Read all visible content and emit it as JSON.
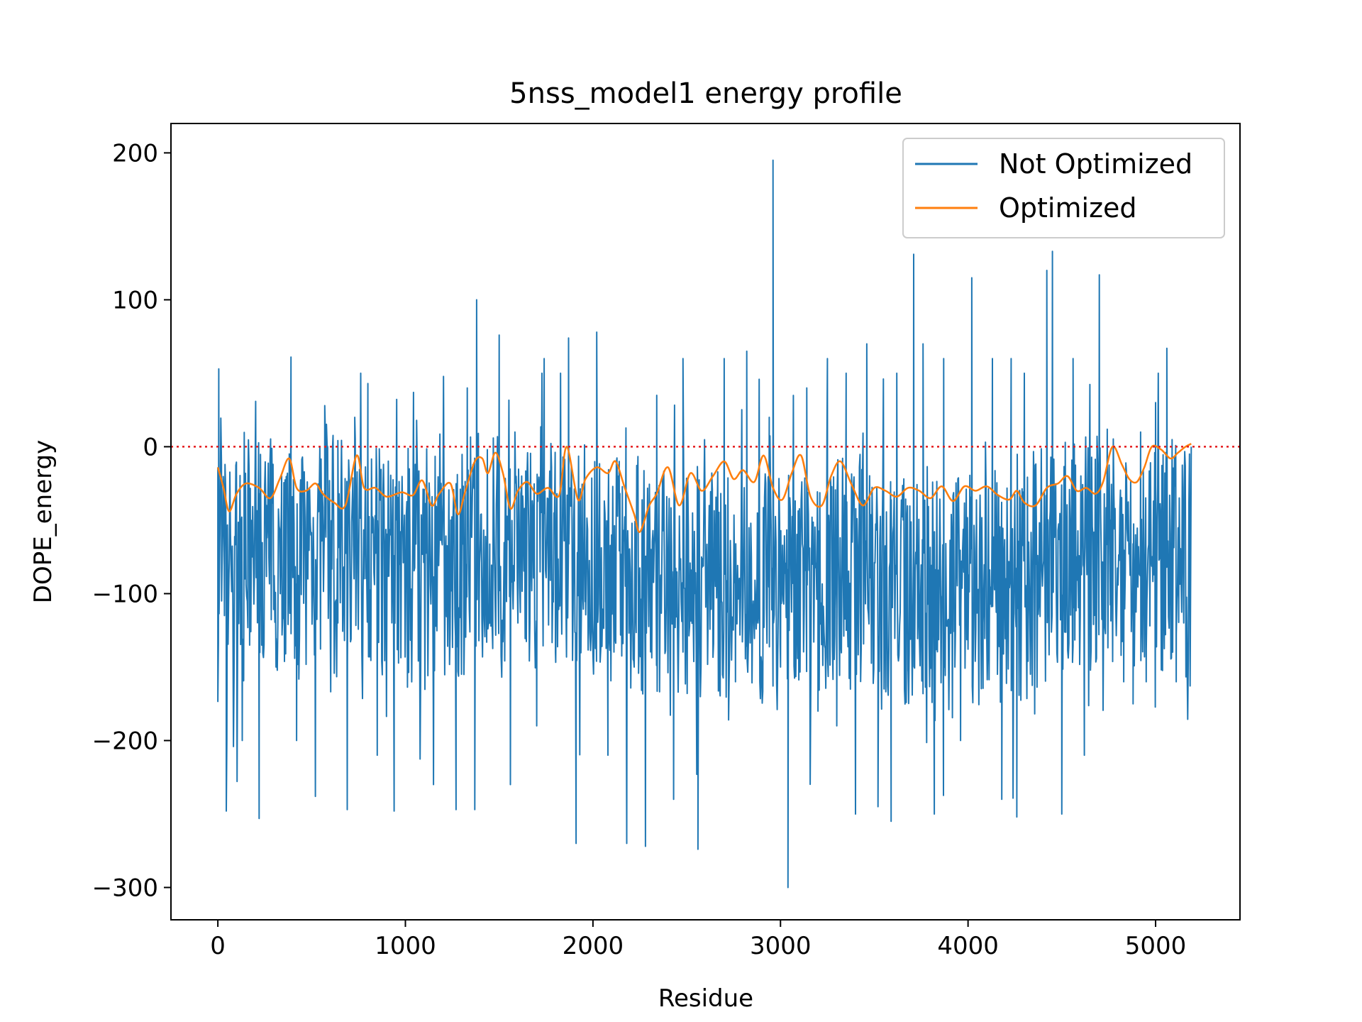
{
  "chart_data": {
    "type": "line",
    "title": "5nss_model1 energy profile",
    "xlabel": "Residue",
    "ylabel": "DOPE_energy",
    "xlim": [
      -250,
      5450
    ],
    "ylim": [
      -322,
      220
    ],
    "xticks": [
      0,
      1000,
      2000,
      3000,
      4000,
      5000
    ],
    "yticks": [
      200,
      100,
      0,
      -100,
      -200,
      -300
    ],
    "ytick_labels": [
      "200",
      "100",
      "0",
      "−100",
      "−200",
      "−300"
    ],
    "grid": false,
    "legend_position": "top-right",
    "reference_line": {
      "y": 0,
      "style": "dotted",
      "color": "#e41a1c"
    },
    "series": [
      {
        "name": "Not Optimized",
        "color": "#1f77b4",
        "x_start": 0,
        "x_end": 5190,
        "sampled_points": [
          [
            0,
            -14
          ],
          [
            5,
            53
          ],
          [
            20,
            -105
          ],
          [
            45,
            -248
          ],
          [
            100,
            -60
          ],
          [
            130,
            -200
          ],
          [
            160,
            -30
          ],
          [
            220,
            -253
          ],
          [
            260,
            -40
          ],
          [
            310,
            -150
          ],
          [
            340,
            -20
          ],
          [
            390,
            61
          ],
          [
            420,
            -200
          ],
          [
            480,
            -90
          ],
          [
            520,
            -238
          ],
          [
            570,
            28
          ],
          [
            640,
            -120
          ],
          [
            690,
            -247
          ],
          [
            730,
            20
          ],
          [
            800,
            43
          ],
          [
            850,
            -210
          ],
          [
            920,
            -60
          ],
          [
            940,
            -248
          ],
          [
            1010,
            -100
          ],
          [
            1060,
            18
          ],
          [
            1100,
            -70
          ],
          [
            1150,
            -230
          ],
          [
            1200,
            -40
          ],
          [
            1270,
            -247
          ],
          [
            1300,
            -90
          ],
          [
            1330,
            40
          ],
          [
            1370,
            -247
          ],
          [
            1380,
            100
          ],
          [
            1450,
            -120
          ],
          [
            1500,
            76
          ],
          [
            1560,
            -230
          ],
          [
            1620,
            -20
          ],
          [
            1700,
            -190
          ],
          [
            1740,
            60
          ],
          [
            1800,
            -140
          ],
          [
            1870,
            74
          ],
          [
            1910,
            -270
          ],
          [
            1960,
            -90
          ],
          [
            2020,
            78
          ],
          [
            2080,
            -210
          ],
          [
            2140,
            -10
          ],
          [
            2180,
            -270
          ],
          [
            2220,
            -150
          ],
          [
            2280,
            -272
          ],
          [
            2310,
            -70
          ],
          [
            2340,
            35
          ],
          [
            2430,
            -240
          ],
          [
            2480,
            60
          ],
          [
            2560,
            -274
          ],
          [
            2620,
            -40
          ],
          [
            2700,
            60
          ],
          [
            2760,
            -160
          ],
          [
            2820,
            65
          ],
          [
            2880,
            -120
          ],
          [
            2940,
            20
          ],
          [
            2960,
            195
          ],
          [
            3000,
            -150
          ],
          [
            3040,
            -300
          ],
          [
            3080,
            -120
          ],
          [
            3140,
            40
          ],
          [
            3200,
            -180
          ],
          [
            3250,
            60
          ],
          [
            3300,
            -190
          ],
          [
            3350,
            50
          ],
          [
            3400,
            -250
          ],
          [
            3460,
            70
          ],
          [
            3520,
            -245
          ],
          [
            3590,
            -255
          ],
          [
            3620,
            50
          ],
          [
            3680,
            -150
          ],
          [
            3710,
            131
          ],
          [
            3760,
            70
          ],
          [
            3820,
            -250
          ],
          [
            3870,
            60
          ],
          [
            3930,
            -150
          ],
          [
            3960,
            -200
          ],
          [
            4020,
            115
          ],
          [
            4080,
            -120
          ],
          [
            4130,
            60
          ],
          [
            4180,
            -240
          ],
          [
            4230,
            60
          ],
          [
            4260,
            -252
          ],
          [
            4300,
            50
          ],
          [
            4360,
            -80
          ],
          [
            4420,
            120
          ],
          [
            4450,
            133
          ],
          [
            4500,
            -250
          ],
          [
            4560,
            60
          ],
          [
            4620,
            -210
          ],
          [
            4700,
            117
          ],
          [
            4760,
            -50
          ],
          [
            4830,
            -160
          ],
          [
            4880,
            -175
          ],
          [
            4920,
            10
          ],
          [
            4950,
            -160
          ],
          [
            5000,
            30
          ],
          [
            5060,
            67
          ],
          [
            5110,
            -160
          ],
          [
            5150,
            -120
          ],
          [
            5190,
            0
          ]
        ]
      },
      {
        "name": "Optimized",
        "color": "#ff7f0e",
        "points": [
          [
            0,
            -14
          ],
          [
            30,
            -28
          ],
          [
            60,
            -44
          ],
          [
            100,
            -32
          ],
          [
            150,
            -25
          ],
          [
            220,
            -28
          ],
          [
            280,
            -35
          ],
          [
            330,
            -22
          ],
          [
            380,
            -8
          ],
          [
            420,
            -28
          ],
          [
            470,
            -30
          ],
          [
            520,
            -25
          ],
          [
            560,
            -32
          ],
          [
            620,
            -38
          ],
          [
            680,
            -40
          ],
          [
            740,
            -6
          ],
          [
            780,
            -28
          ],
          [
            840,
            -28
          ],
          [
            900,
            -34
          ],
          [
            980,
            -31
          ],
          [
            1040,
            -33
          ],
          [
            1090,
            -23
          ],
          [
            1140,
            -40
          ],
          [
            1180,
            -32
          ],
          [
            1240,
            -25
          ],
          [
            1280,
            -46
          ],
          [
            1320,
            -30
          ],
          [
            1370,
            -10
          ],
          [
            1410,
            -8
          ],
          [
            1440,
            -18
          ],
          [
            1480,
            -4
          ],
          [
            1520,
            -18
          ],
          [
            1560,
            -42
          ],
          [
            1600,
            -30
          ],
          [
            1650,
            -24
          ],
          [
            1700,
            -32
          ],
          [
            1760,
            -28
          ],
          [
            1820,
            -33
          ],
          [
            1860,
            0
          ],
          [
            1920,
            -36
          ],
          [
            1960,
            -22
          ],
          [
            2020,
            -14
          ],
          [
            2080,
            -18
          ],
          [
            2120,
            -10
          ],
          [
            2170,
            -28
          ],
          [
            2220,
            -46
          ],
          [
            2250,
            -58
          ],
          [
            2300,
            -40
          ],
          [
            2340,
            -32
          ],
          [
            2400,
            -14
          ],
          [
            2460,
            -40
          ],
          [
            2520,
            -18
          ],
          [
            2580,
            -30
          ],
          [
            2640,
            -20
          ],
          [
            2700,
            -10
          ],
          [
            2750,
            -22
          ],
          [
            2800,
            -16
          ],
          [
            2860,
            -24
          ],
          [
            2910,
            -6
          ],
          [
            2960,
            -28
          ],
          [
            3010,
            -36
          ],
          [
            3060,
            -18
          ],
          [
            3110,
            -6
          ],
          [
            3160,
            -34
          ],
          [
            3220,
            -40
          ],
          [
            3270,
            -20
          ],
          [
            3320,
            -10
          ],
          [
            3380,
            -26
          ],
          [
            3440,
            -40
          ],
          [
            3500,
            -28
          ],
          [
            3560,
            -30
          ],
          [
            3620,
            -34
          ],
          [
            3680,
            -28
          ],
          [
            3740,
            -30
          ],
          [
            3800,
            -35
          ],
          [
            3860,
            -27
          ],
          [
            3920,
            -37
          ],
          [
            3980,
            -27
          ],
          [
            4040,
            -30
          ],
          [
            4100,
            -27
          ],
          [
            4160,
            -33
          ],
          [
            4220,
            -36
          ],
          [
            4260,
            -30
          ],
          [
            4300,
            -38
          ],
          [
            4360,
            -40
          ],
          [
            4420,
            -28
          ],
          [
            4480,
            -25
          ],
          [
            4530,
            -20
          ],
          [
            4580,
            -30
          ],
          [
            4630,
            -28
          ],
          [
            4680,
            -32
          ],
          [
            4720,
            -24
          ],
          [
            4770,
            0
          ],
          [
            4820,
            -12
          ],
          [
            4860,
            -22
          ],
          [
            4900,
            -24
          ],
          [
            4940,
            -14
          ],
          [
            4980,
            0
          ],
          [
            5030,
            -2
          ],
          [
            5080,
            -8
          ],
          [
            5120,
            -4
          ],
          [
            5160,
            0
          ],
          [
            5190,
            2
          ]
        ]
      }
    ]
  }
}
